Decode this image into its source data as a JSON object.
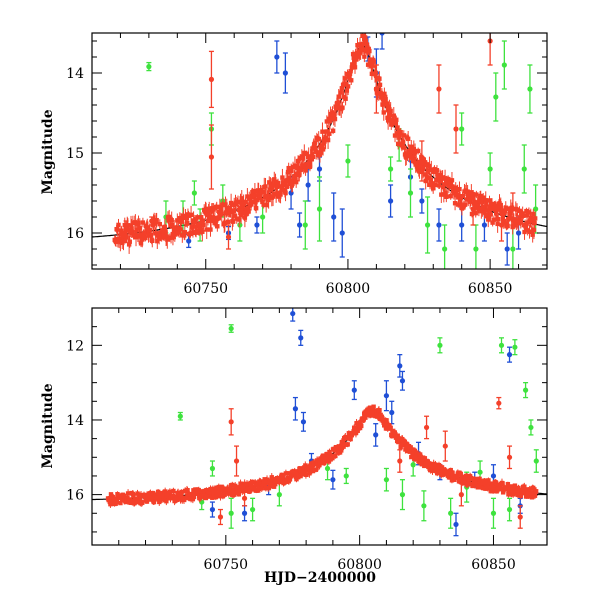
{
  "chart_data": [
    {
      "type": "scatter",
      "panel": "top",
      "xlabel": "",
      "ylabel": "Magnitude",
      "xlim": [
        60710,
        60870
      ],
      "ylim": [
        16.45,
        13.5
      ],
      "y_inverted": true,
      "x_ticks": [
        60750,
        60800,
        60850
      ],
      "y_ticks": [
        14,
        15,
        16
      ],
      "colors": {
        "blue": "#1f4fd6",
        "green": "#3ee23e",
        "red": "#f4402a",
        "model": "#000000"
      },
      "model_curve": {
        "t0": 60805,
        "peak": 13.65,
        "base": 16.15,
        "u": 0.065,
        "tE": 60
      },
      "series": [
        {
          "color": "blue",
          "points": [
            {
              "x": 60744,
              "y": 16.1,
              "e": 0.08
            },
            {
              "x": 60758,
              "y": 16.0,
              "e": 0.08
            },
            {
              "x": 60768,
              "y": 15.9,
              "e": 0.1
            },
            {
              "x": 60775,
              "y": 13.8,
              "e": 0.2
            },
            {
              "x": 60778,
              "y": 14.0,
              "e": 0.25
            },
            {
              "x": 60780,
              "y": 15.5,
              "e": 0.2
            },
            {
              "x": 60783,
              "y": 15.9,
              "e": 0.15
            },
            {
              "x": 60786,
              "y": 15.4,
              "e": 0.2
            },
            {
              "x": 60790,
              "y": 15.2,
              "e": 0.15
            },
            {
              "x": 60795,
              "y": 15.8,
              "e": 0.3
            },
            {
              "x": 60798,
              "y": 16.0,
              "e": 0.3
            },
            {
              "x": 60807,
              "y": 13.7,
              "e": 0.15
            },
            {
              "x": 60810,
              "y": 14.0,
              "e": 0.3
            },
            {
              "x": 60812,
              "y": 13.5,
              "e": 0.2
            },
            {
              "x": 60815,
              "y": 15.6,
              "e": 0.2
            },
            {
              "x": 60822,
              "y": 15.3,
              "e": 0.2
            },
            {
              "x": 60826,
              "y": 15.6,
              "e": 0.15
            },
            {
              "x": 60832,
              "y": 15.9,
              "e": 0.2
            },
            {
              "x": 60840,
              "y": 15.9,
              "e": 0.2
            },
            {
              "x": 60848,
              "y": 15.9,
              "e": 0.2
            },
            {
              "x": 60856,
              "y": 16.2,
              "e": 0.2
            },
            {
              "x": 60860,
              "y": 16.0,
              "e": 0.2
            }
          ]
        },
        {
          "color": "green",
          "points": [
            {
              "x": 60730,
              "y": 13.92,
              "e": 0.05
            },
            {
              "x": 60736,
              "y": 15.8,
              "e": 0.2
            },
            {
              "x": 60742,
              "y": 15.8,
              "e": 0.2
            },
            {
              "x": 60746,
              "y": 15.5,
              "e": 0.15
            },
            {
              "x": 60748,
              "y": 15.9,
              "e": 0.2
            },
            {
              "x": 60752,
              "y": 14.7,
              "e": 0.2
            },
            {
              "x": 60756,
              "y": 15.6,
              "e": 0.2
            },
            {
              "x": 60762,
              "y": 15.9,
              "e": 0.2
            },
            {
              "x": 60770,
              "y": 15.8,
              "e": 0.2
            },
            {
              "x": 60785,
              "y": 15.9,
              "e": 0.3
            },
            {
              "x": 60790,
              "y": 15.7,
              "e": 0.4
            },
            {
              "x": 60800,
              "y": 15.1,
              "e": 0.2
            },
            {
              "x": 60815,
              "y": 15.2,
              "e": 0.15
            },
            {
              "x": 60818,
              "y": 14.9,
              "e": 0.2
            },
            {
              "x": 60822,
              "y": 15.5,
              "e": 0.3
            },
            {
              "x": 60828,
              "y": 15.9,
              "e": 0.35
            },
            {
              "x": 60834,
              "y": 16.2,
              "e": 0.3
            },
            {
              "x": 60840,
              "y": 14.7,
              "e": 0.2
            },
            {
              "x": 60845,
              "y": 16.2,
              "e": 0.3
            },
            {
              "x": 60850,
              "y": 15.2,
              "e": 0.2
            },
            {
              "x": 60852,
              "y": 14.3,
              "e": 0.3
            },
            {
              "x": 60855,
              "y": 13.9,
              "e": 0.3
            },
            {
              "x": 60858,
              "y": 16.2,
              "e": 0.3
            },
            {
              "x": 60862,
              "y": 15.2,
              "e": 0.3
            },
            {
              "x": 60864,
              "y": 14.2,
              "e": 0.3
            },
            {
              "x": 60866,
              "y": 15.7,
              "e": 0.3
            }
          ]
        },
        {
          "color": "red",
          "points": [
            {
              "x": 60722,
              "y": 15.9,
              "e": 0.05
            },
            {
              "x": 60731,
              "y": 15.85,
              "e": 0.05
            },
            {
              "x": 60752,
              "y": 14.08,
              "e": 0.35
            },
            {
              "x": 60752,
              "y": 15.05,
              "e": 0.4
            },
            {
              "x": 60758,
              "y": 16.05,
              "e": 0.15
            },
            {
              "x": 60810,
              "y": 14.2,
              "e": 0.3
            },
            {
              "x": 60826,
              "y": 15.1,
              "e": 0.25
            },
            {
              "x": 60832,
              "y": 14.2,
              "e": 0.3
            },
            {
              "x": 60838,
              "y": 14.7,
              "e": 0.3
            },
            {
              "x": 60844,
              "y": 15.7,
              "e": 0.2
            },
            {
              "x": 60850,
              "y": 13.6,
              "e": 0.3
            },
            {
              "x": 60854,
              "y": 15.9,
              "e": 0.2
            },
            {
              "x": 60858,
              "y": 15.7,
              "e": 0.2
            }
          ]
        }
      ]
    },
    {
      "type": "scatter",
      "panel": "bottom",
      "xlabel": "HJD−2400000",
      "ylabel": "Magnitude",
      "xlim": [
        60700,
        60870
      ],
      "ylim": [
        17.35,
        11.0
      ],
      "y_inverted": true,
      "x_ticks": [
        60750,
        60800,
        60850
      ],
      "y_ticks": [
        12,
        14,
        16
      ],
      "colors": {
        "blue": "#1f4fd6",
        "green": "#3ee23e",
        "red": "#f4402a",
        "model": "#000000"
      },
      "model_curve": {
        "t0": 60805,
        "peak": 13.75,
        "base": 16.2,
        "u": 0.09,
        "tE": 55
      },
      "series": [
        {
          "color": "blue",
          "points": [
            {
              "x": 60745,
              "y": 16.4,
              "e": 0.2
            },
            {
              "x": 60757,
              "y": 16.5,
              "e": 0.2
            },
            {
              "x": 60766,
              "y": 15.8,
              "e": 0.2
            },
            {
              "x": 60775,
              "y": 11.15,
              "e": 0.2
            },
            {
              "x": 60778,
              "y": 11.8,
              "e": 0.2
            },
            {
              "x": 60776,
              "y": 13.7,
              "e": 0.3
            },
            {
              "x": 60779,
              "y": 14.05,
              "e": 0.25
            },
            {
              "x": 60782,
              "y": 15.1,
              "e": 0.2
            },
            {
              "x": 60790,
              "y": 15.6,
              "e": 0.25
            },
            {
              "x": 60798,
              "y": 13.2,
              "e": 0.25
            },
            {
              "x": 60806,
              "y": 14.4,
              "e": 0.3
            },
            {
              "x": 60810,
              "y": 13.35,
              "e": 0.4
            },
            {
              "x": 60812,
              "y": 13.8,
              "e": 0.3
            },
            {
              "x": 60815,
              "y": 12.55,
              "e": 0.3
            },
            {
              "x": 60816,
              "y": 12.95,
              "e": 0.25
            },
            {
              "x": 60822,
              "y": 14.9,
              "e": 0.3
            },
            {
              "x": 60830,
              "y": 15.4,
              "e": 0.2
            },
            {
              "x": 60836,
              "y": 16.8,
              "e": 0.3
            },
            {
              "x": 60843,
              "y": 15.6,
              "e": 0.2
            },
            {
              "x": 60850,
              "y": 15.5,
              "e": 0.3
            },
            {
              "x": 60856,
              "y": 12.25,
              "e": 0.2
            },
            {
              "x": 60860,
              "y": 16.3,
              "e": 0.2
            }
          ]
        },
        {
          "color": "green",
          "points": [
            {
              "x": 60733,
              "y": 13.9,
              "e": 0.1
            },
            {
              "x": 60741,
              "y": 16.2,
              "e": 0.2
            },
            {
              "x": 60745,
              "y": 15.3,
              "e": 0.2
            },
            {
              "x": 60752,
              "y": 11.55,
              "e": 0.1
            },
            {
              "x": 60752,
              "y": 16.5,
              "e": 0.4
            },
            {
              "x": 60760,
              "y": 16.4,
              "e": 0.3
            },
            {
              "x": 60770,
              "y": 16.0,
              "e": 0.3
            },
            {
              "x": 60788,
              "y": 15.3,
              "e": 0.3
            },
            {
              "x": 60795,
              "y": 15.5,
              "e": 0.2
            },
            {
              "x": 60810,
              "y": 15.6,
              "e": 0.3
            },
            {
              "x": 60816,
              "y": 16.0,
              "e": 0.4
            },
            {
              "x": 60820,
              "y": 15.2,
              "e": 0.3
            },
            {
              "x": 60824,
              "y": 16.3,
              "e": 0.4
            },
            {
              "x": 60830,
              "y": 12.0,
              "e": 0.2
            },
            {
              "x": 60834,
              "y": 16.5,
              "e": 0.4
            },
            {
              "x": 60840,
              "y": 15.8,
              "e": 0.4
            },
            {
              "x": 60845,
              "y": 15.4,
              "e": 0.3
            },
            {
              "x": 60850,
              "y": 16.5,
              "e": 0.4
            },
            {
              "x": 60853,
              "y": 12.0,
              "e": 0.2
            },
            {
              "x": 60856,
              "y": 16.4,
              "e": 0.3
            },
            {
              "x": 60858,
              "y": 12.05,
              "e": 0.2
            },
            {
              "x": 60862,
              "y": 13.2,
              "e": 0.2
            },
            {
              "x": 60864,
              "y": 14.2,
              "e": 0.2
            },
            {
              "x": 60866,
              "y": 15.1,
              "e": 0.3
            }
          ]
        },
        {
          "color": "red",
          "points": [
            {
              "x": 60752,
              "y": 14.05,
              "e": 0.35
            },
            {
              "x": 60754,
              "y": 15.1,
              "e": 0.4
            },
            {
              "x": 60748,
              "y": 16.6,
              "e": 0.2
            },
            {
              "x": 60757,
              "y": 16.1,
              "e": 0.2
            },
            {
              "x": 60815,
              "y": 15.1,
              "e": 0.3
            },
            {
              "x": 60825,
              "y": 14.2,
              "e": 0.3
            },
            {
              "x": 60832,
              "y": 14.7,
              "e": 0.4
            },
            {
              "x": 60838,
              "y": 16.0,
              "e": 0.3
            },
            {
              "x": 60852,
              "y": 13.55,
              "e": 0.15
            },
            {
              "x": 60856,
              "y": 15.0,
              "e": 0.3
            },
            {
              "x": 60860,
              "y": 16.6,
              "e": 0.3
            }
          ]
        }
      ]
    }
  ]
}
